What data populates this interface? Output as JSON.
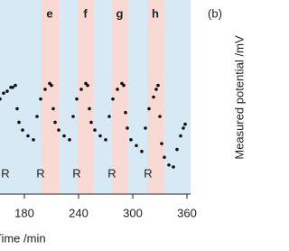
{
  "chart_data": {
    "type": "scatter",
    "xlabel": "Time /min",
    "ylabel": "Measured potential /mV",
    "panel_label": "(b)",
    "xlim": [
      153,
      364
    ],
    "ylim": [
      0,
      100
    ],
    "xticks": [
      180,
      240,
      300,
      360
    ],
    "background": "#d6e9f5",
    "regions": [
      {
        "label": "e",
        "start": 198,
        "end": 218,
        "color": "#f9d9d3"
      },
      {
        "label": "f",
        "start": 239,
        "end": 256,
        "color": "#f9d9d3"
      },
      {
        "label": "g",
        "start": 277,
        "end": 294,
        "color": "#f9d9d3"
      },
      {
        "label": "h",
        "start": 316,
        "end": 334,
        "color": "#f9d9d3"
      }
    ],
    "markers": [
      {
        "label": "R",
        "x": 159
      },
      {
        "label": "R",
        "x": 198
      },
      {
        "label": "R",
        "x": 238
      },
      {
        "label": "R",
        "x": 277
      },
      {
        "label": "R",
        "x": 317
      }
    ],
    "series": [
      {
        "color": "#111111",
        "x": [
          153,
          157,
          161,
          165,
          167,
          170,
          172,
          174,
          178,
          184,
          190,
          194,
          198,
          203,
          208,
          210,
          212,
          214,
          218,
          224,
          230,
          234,
          238,
          243,
          248,
          250,
          252,
          254,
          258,
          264,
          270,
          274,
          278,
          283,
          288,
          290,
          292,
          294,
          298,
          304,
          310,
          314,
          318,
          323,
          326,
          328,
          330,
          332,
          335,
          340,
          345,
          349,
          353,
          356,
          358
        ],
        "values": [
          49,
          52,
          53,
          55,
          55,
          56,
          44,
          37,
          33,
          30,
          28,
          40,
          49,
          54,
          57,
          56,
          44,
          37,
          33,
          30,
          28,
          40,
          49,
          54,
          57,
          56,
          44,
          37,
          33,
          30,
          28,
          40,
          49,
          54,
          57,
          56,
          42,
          34,
          28,
          25,
          22,
          34,
          44,
          50,
          54,
          56,
          40,
          26,
          19,
          15,
          14,
          23,
          30,
          34,
          36
        ]
      }
    ]
  }
}
